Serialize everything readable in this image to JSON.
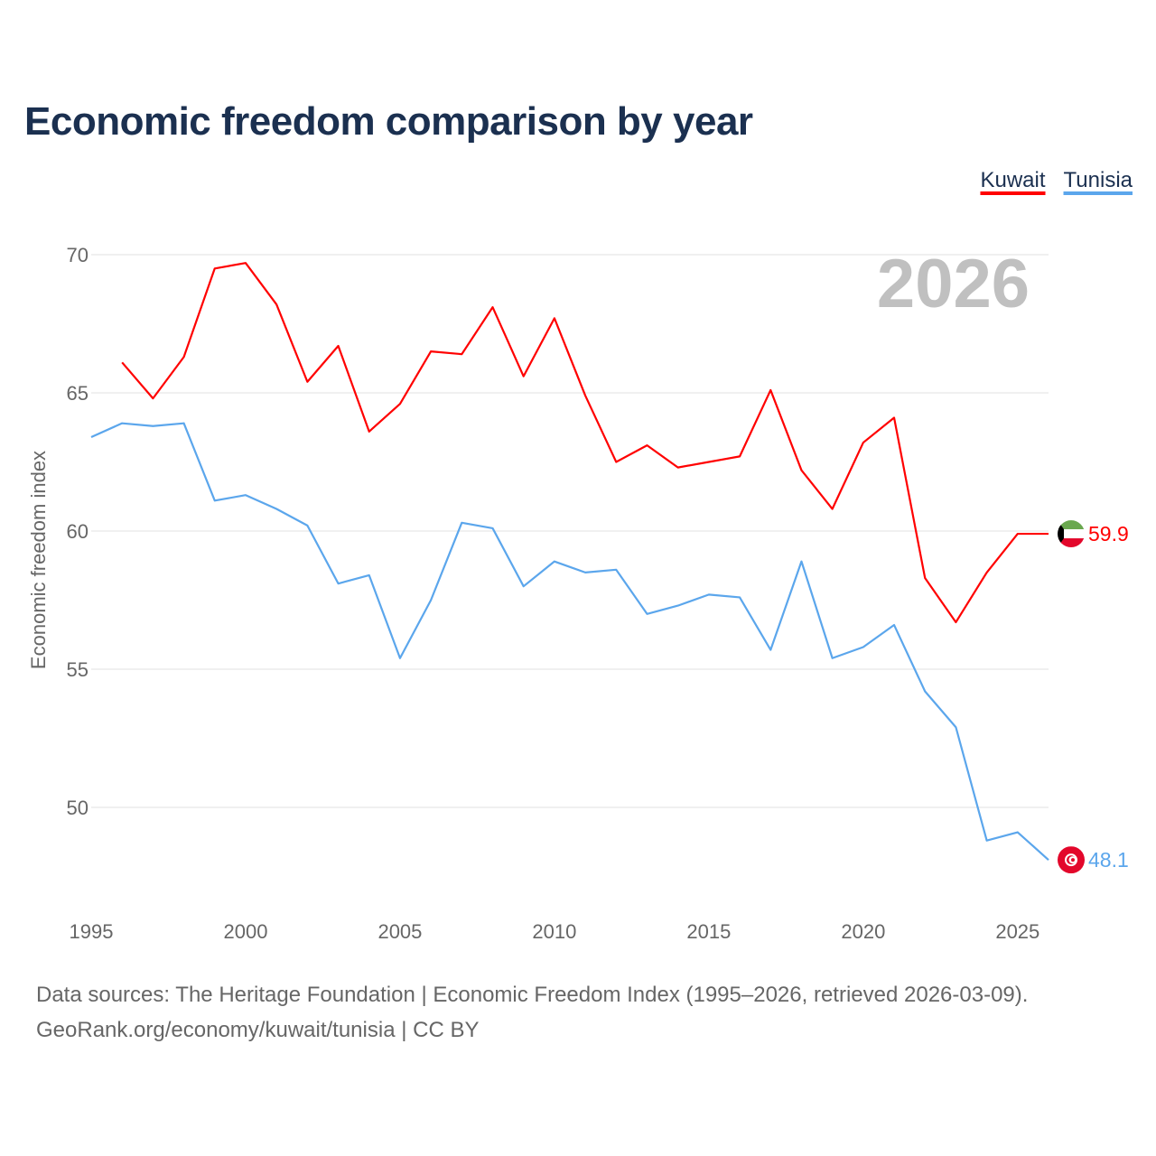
{
  "title": "Economic freedom comparison by year",
  "footer": {
    "line1": "Data sources: The Heritage Foundation | Economic Freedom Index (1995–2026, retrieved 2026-03-09).",
    "line2": "GeoRank.org/economy/kuwait/tunisia | CC BY"
  },
  "chart_data": {
    "type": "line",
    "title": "Economic freedom comparison by year",
    "xlabel": "",
    "ylabel": "Economic freedom index",
    "year_watermark": "2026",
    "xlim": [
      1995,
      2026
    ],
    "ylim": [
      46.5,
      71
    ],
    "x_ticks": [
      1995,
      2000,
      2005,
      2010,
      2015,
      2020,
      2025
    ],
    "y_ticks": [
      50,
      55,
      60,
      65,
      70
    ],
    "grid": true,
    "legend_placement": "top-right",
    "series": [
      {
        "name": "Kuwait",
        "color": "#ff0000",
        "flag": "kuwait-flag",
        "end_label": "59.9",
        "x": [
          1996,
          1997,
          1998,
          1999,
          2000,
          2001,
          2002,
          2003,
          2004,
          2005,
          2006,
          2007,
          2008,
          2009,
          2010,
          2011,
          2012,
          2013,
          2014,
          2015,
          2016,
          2017,
          2018,
          2019,
          2020,
          2021,
          2022,
          2023,
          2024,
          2025,
          2026
        ],
        "values": [
          66.1,
          64.8,
          66.3,
          69.5,
          69.7,
          68.2,
          65.4,
          66.7,
          63.6,
          64.6,
          66.5,
          66.4,
          68.1,
          65.6,
          67.7,
          64.9,
          62.5,
          63.1,
          62.3,
          62.5,
          62.7,
          65.1,
          62.2,
          60.8,
          63.2,
          64.1,
          58.3,
          56.7,
          58.5,
          59.9,
          59.9
        ]
      },
      {
        "name": "Tunisia",
        "color": "#5ba6ec",
        "flag": "tunisia-flag",
        "end_label": "48.1",
        "x": [
          1995,
          1996,
          1997,
          1998,
          1999,
          2000,
          2001,
          2002,
          2003,
          2004,
          2005,
          2006,
          2007,
          2008,
          2009,
          2010,
          2011,
          2012,
          2013,
          2014,
          2015,
          2016,
          2017,
          2018,
          2019,
          2020,
          2021,
          2022,
          2023,
          2024,
          2025,
          2026
        ],
        "values": [
          63.4,
          63.9,
          63.8,
          63.9,
          61.1,
          61.3,
          60.8,
          60.2,
          58.1,
          58.4,
          55.4,
          57.5,
          60.3,
          60.1,
          58.0,
          58.9,
          58.5,
          58.6,
          57.0,
          57.3,
          57.7,
          57.6,
          55.7,
          58.9,
          55.4,
          55.8,
          56.6,
          54.2,
          52.9,
          48.8,
          49.1,
          48.1
        ]
      }
    ]
  }
}
